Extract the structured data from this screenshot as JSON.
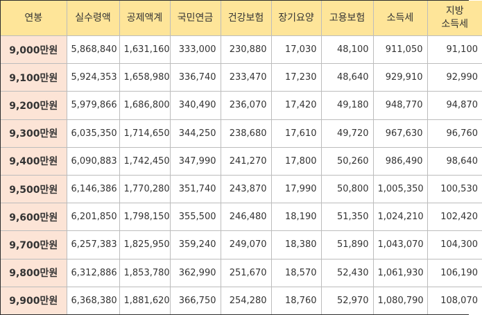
{
  "table": {
    "columns": [
      "연봉",
      "실수령액",
      "공제액계",
      "국민연금",
      "건강보험",
      "장기요양",
      "고용보험",
      "소득세",
      "지방\n소득세"
    ],
    "header_local_tax_line1": "지방",
    "header_local_tax_line2": "소득세",
    "rows": [
      [
        "9,000만원",
        "5,868,840",
        "1,631,160",
        "333,000",
        "230,880",
        "17,030",
        "48,100",
        "911,050",
        "91,100"
      ],
      [
        "9,100만원",
        "5,924,353",
        "1,658,980",
        "336,740",
        "233,470",
        "17,230",
        "48,640",
        "929,910",
        "92,990"
      ],
      [
        "9,200만원",
        "5,979,866",
        "1,686,800",
        "340,490",
        "236,070",
        "17,420",
        "49,180",
        "948,770",
        "94,870"
      ],
      [
        "9,300만원",
        "6,035,350",
        "1,714,650",
        "344,250",
        "238,680",
        "17,610",
        "49,720",
        "967,630",
        "96,760"
      ],
      [
        "9,400만원",
        "6,090,883",
        "1,742,450",
        "347,990",
        "241,270",
        "17,800",
        "50,260",
        "986,490",
        "98,640"
      ],
      [
        "9,500만원",
        "6,146,386",
        "1,770,280",
        "351,740",
        "243,870",
        "17,990",
        "50,800",
        "1,005,350",
        "100,530"
      ],
      [
        "9,600만원",
        "6,201,850",
        "1,798,150",
        "355,500",
        "246,480",
        "18,190",
        "51,350",
        "1,024,210",
        "102,420"
      ],
      [
        "9,700만원",
        "6,257,383",
        "1,825,950",
        "359,240",
        "249,070",
        "18,380",
        "51,890",
        "1,043,070",
        "104,300"
      ],
      [
        "9,800만원",
        "6,312,886",
        "1,853,780",
        "362,990",
        "251,670",
        "18,570",
        "52,430",
        "1,061,930",
        "106,190"
      ],
      [
        "9,900만원",
        "6,368,380",
        "1,881,620",
        "366,750",
        "254,280",
        "18,760",
        "52,970",
        "1,080,790",
        "108,070"
      ]
    ]
  },
  "colors": {
    "header_bg": "#fee599",
    "year_col_bg": "#fce4d6",
    "text": "#333333",
    "grid": "#bcbcbc"
  }
}
